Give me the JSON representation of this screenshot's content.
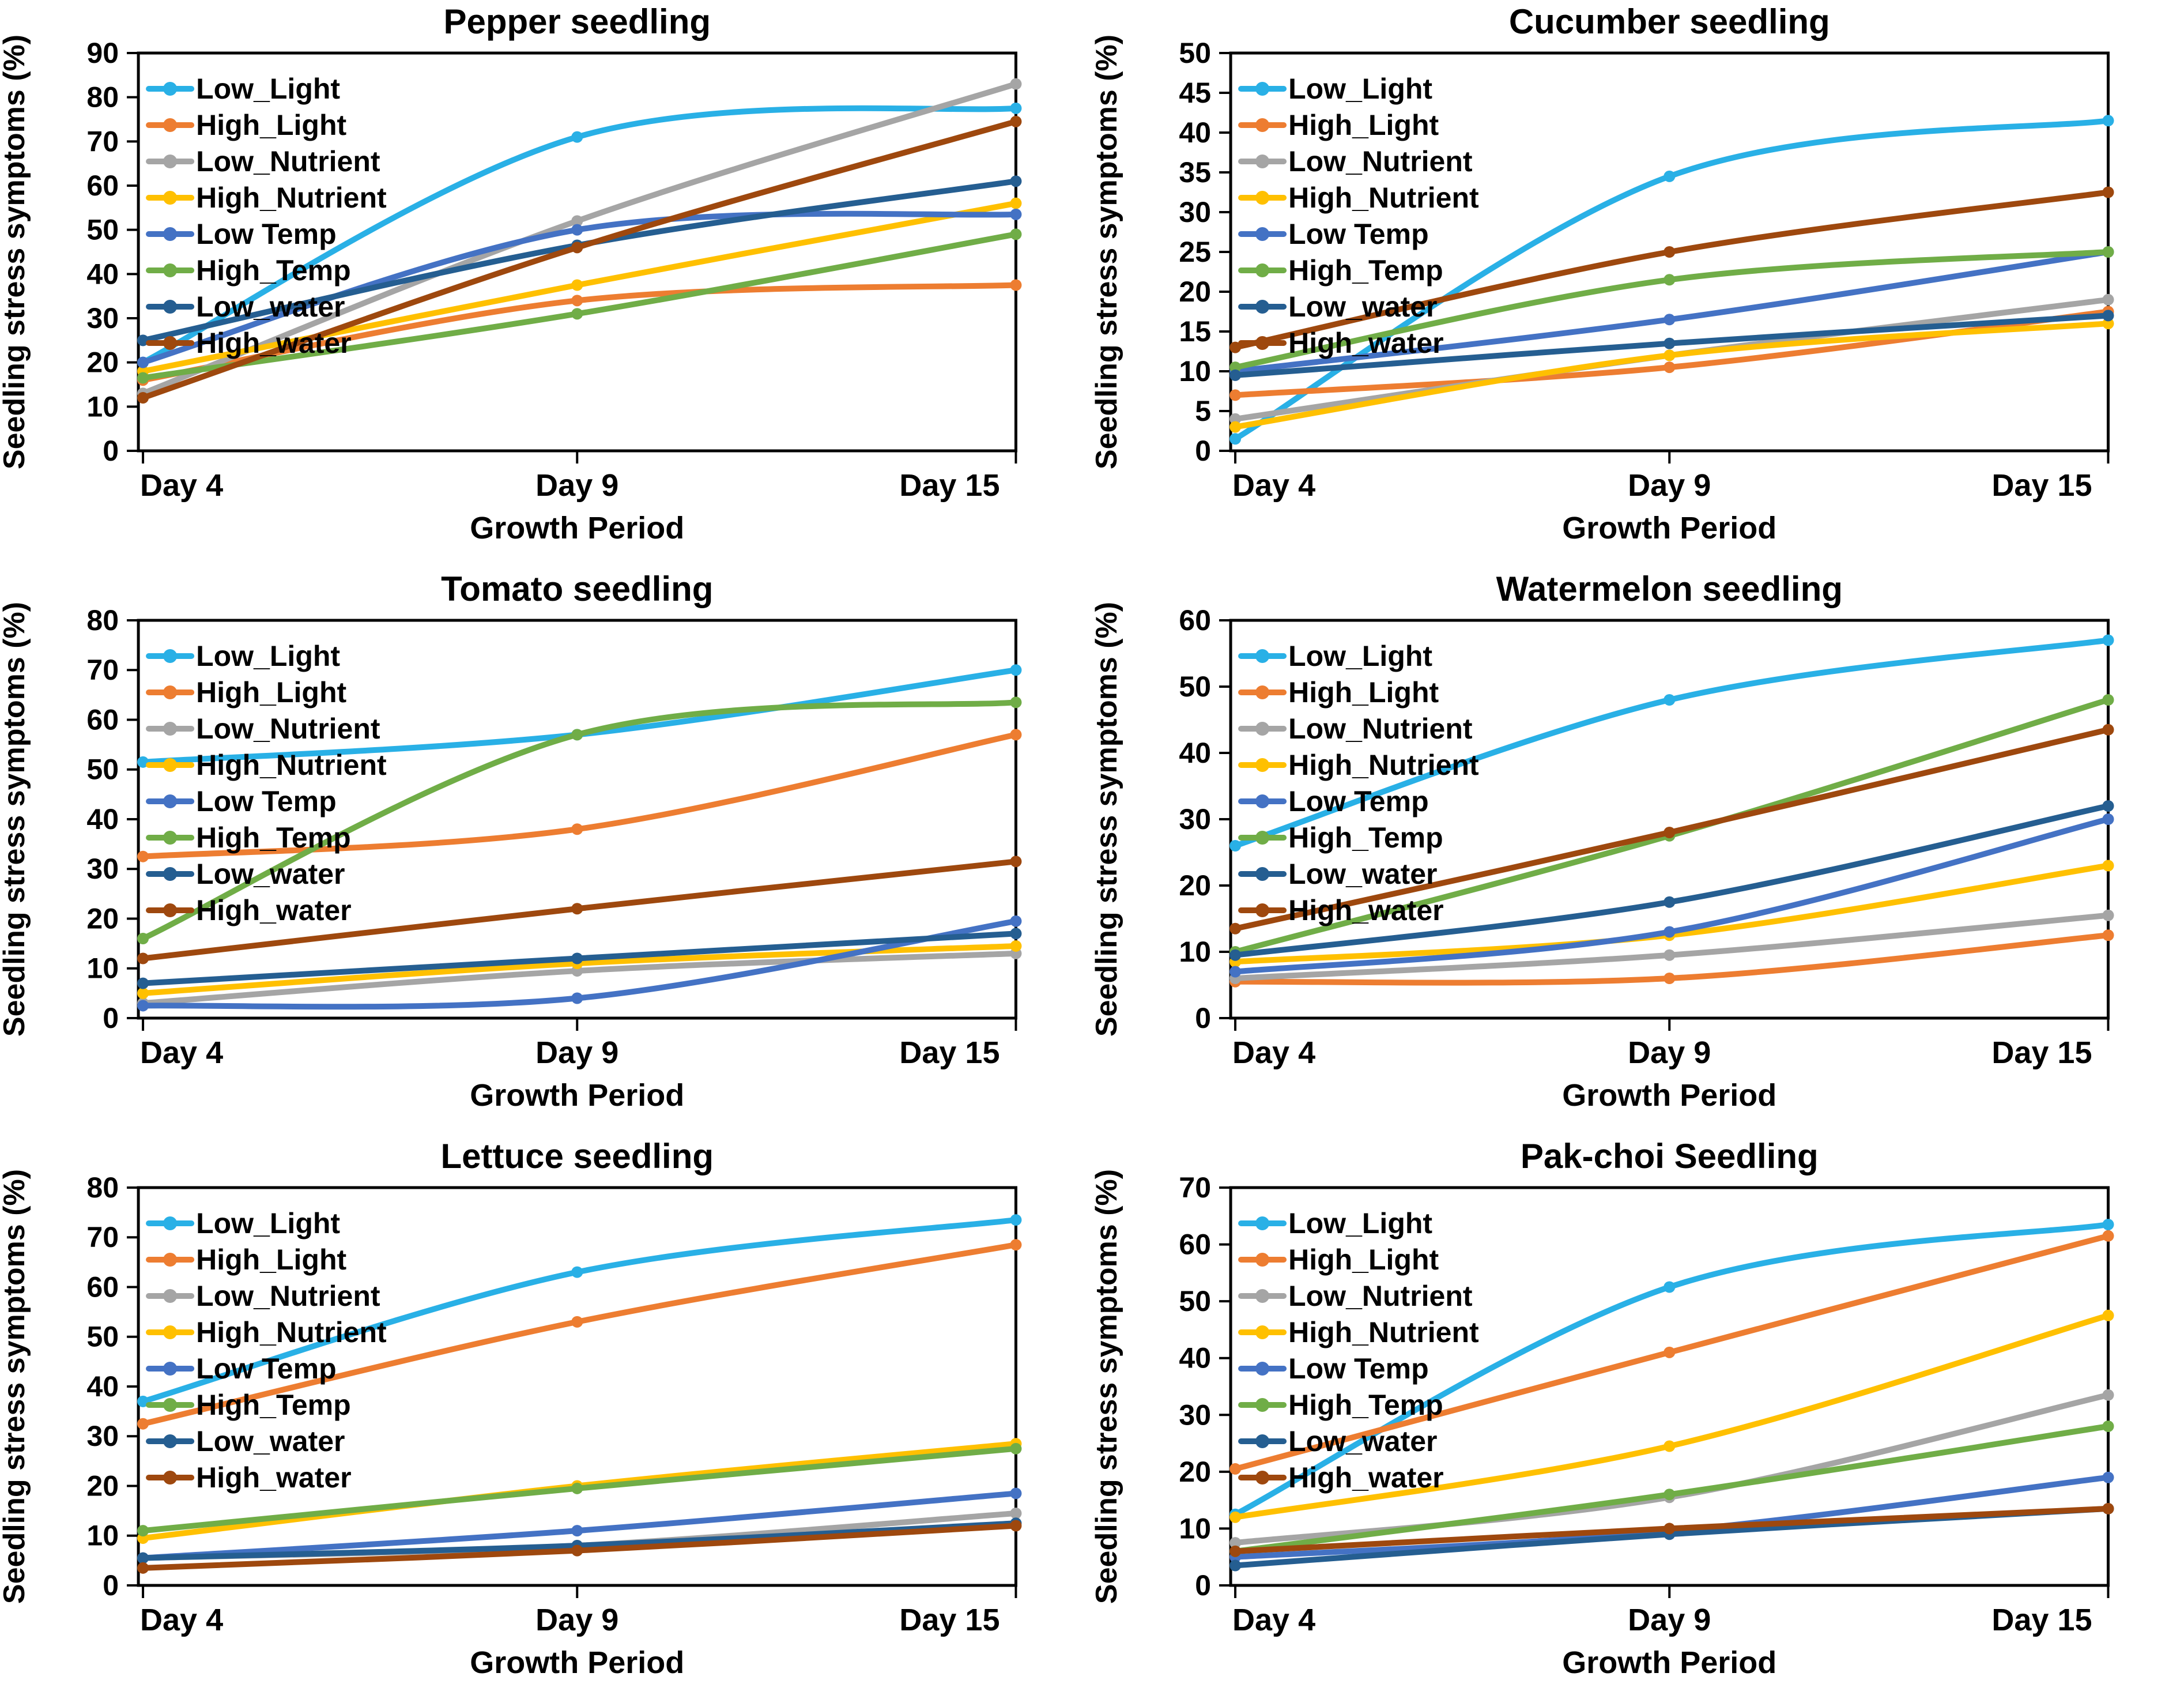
{
  "figure": {
    "background": "#ffffff",
    "text_color": "#000000",
    "x_axis_title": "Growth Period",
    "y_axis_title": "Seedling stress symptoms (%)",
    "categories": [
      "Day 4",
      "Day 9",
      "Day 15"
    ],
    "legend_position": "top-left-inside",
    "grid": "off",
    "series_colors": {
      "Low_Light": "#29B0E6",
      "High_Light": "#ED7D31",
      "Low_Nutrient": "#A5A5A5",
      "High_Nutrient": "#FFC000",
      "Low Temp": "#4472C4",
      "High_Temp": "#70AD47",
      "Low_water": "#255E91",
      "High_water": "#9E480E"
    }
  },
  "chart_data": [
    {
      "type": "line",
      "title": "Pepper seedling",
      "xlabel": "Growth Period",
      "ylabel": "Seedling stress symptoms (%)",
      "categories": [
        "Day 4",
        "Day 9",
        "Day 15"
      ],
      "ylim": [
        0,
        90
      ],
      "ytick_step": 10,
      "series": [
        {
          "name": "Low_Light",
          "color": "#29B0E6",
          "values": [
            20,
            71,
            77.5
          ]
        },
        {
          "name": "High_Light",
          "color": "#ED7D31",
          "values": [
            16,
            34,
            37.5
          ]
        },
        {
          "name": "Low_Nutrient",
          "color": "#A5A5A5",
          "values": [
            13,
            52,
            83
          ]
        },
        {
          "name": "High_Nutrient",
          "color": "#FFC000",
          "values": [
            18,
            37.5,
            56
          ]
        },
        {
          "name": "Low Temp",
          "color": "#4472C4",
          "values": [
            20,
            50,
            53.5
          ]
        },
        {
          "name": "High_Temp",
          "color": "#70AD47",
          "values": [
            16.5,
            31,
            49
          ]
        },
        {
          "name": "Low_water",
          "color": "#255E91",
          "values": [
            25,
            46.5,
            61
          ]
        },
        {
          "name": "High_water",
          "color": "#9E480E",
          "values": [
            12,
            46,
            74.5
          ]
        }
      ]
    },
    {
      "type": "line",
      "title": "Cucumber seedling",
      "xlabel": "Growth Period",
      "ylabel": "Seedling stress symptoms (%)",
      "categories": [
        "Day 4",
        "Day 9",
        "Day 15"
      ],
      "ylim": [
        0,
        50
      ],
      "ytick_step": 5,
      "series": [
        {
          "name": "Low_Light",
          "color": "#29B0E6",
          "values": [
            1.5,
            34.5,
            41.5
          ]
        },
        {
          "name": "High_Light",
          "color": "#ED7D31",
          "values": [
            7,
            10.5,
            17.5
          ]
        },
        {
          "name": "Low_Nutrient",
          "color": "#A5A5A5",
          "values": [
            4,
            12,
            19
          ]
        },
        {
          "name": "High_Nutrient",
          "color": "#FFC000",
          "values": [
            3,
            12,
            16
          ]
        },
        {
          "name": "Low Temp",
          "color": "#4472C4",
          "values": [
            10,
            16.5,
            25
          ]
        },
        {
          "name": "High_Temp",
          "color": "#70AD47",
          "values": [
            10.5,
            21.5,
            25
          ]
        },
        {
          "name": "Low_water",
          "color": "#255E91",
          "values": [
            9.5,
            13.5,
            17
          ]
        },
        {
          "name": "High_water",
          "color": "#9E480E",
          "values": [
            13,
            25,
            32.5
          ]
        }
      ]
    },
    {
      "type": "line",
      "title": "Tomato seedling",
      "xlabel": "Growth Period",
      "ylabel": "Seedling stress symptoms (%)",
      "categories": [
        "Day 4",
        "Day 9",
        "Day 15"
      ],
      "ylim": [
        0,
        80
      ],
      "ytick_step": 10,
      "series": [
        {
          "name": "Low_Light",
          "color": "#29B0E6",
          "values": [
            51.5,
            57,
            70
          ]
        },
        {
          "name": "High_Light",
          "color": "#ED7D31",
          "values": [
            32.5,
            38,
            57
          ]
        },
        {
          "name": "Low_Nutrient",
          "color": "#A5A5A5",
          "values": [
            3,
            9.5,
            13
          ]
        },
        {
          "name": "High_Nutrient",
          "color": "#FFC000",
          "values": [
            5,
            11,
            14.5
          ]
        },
        {
          "name": "Low Temp",
          "color": "#4472C4",
          "values": [
            2.5,
            4,
            19.5
          ]
        },
        {
          "name": "High_Temp",
          "color": "#70AD47",
          "values": [
            16,
            57,
            63.5
          ]
        },
        {
          "name": "Low_water",
          "color": "#255E91",
          "values": [
            7,
            12,
            17
          ]
        },
        {
          "name": "High_water",
          "color": "#9E480E",
          "values": [
            12,
            22,
            31.5
          ]
        }
      ]
    },
    {
      "type": "line",
      "title": "Watermelon seedling",
      "xlabel": "Growth Period",
      "ylabel": "Seedling stress symptoms (%)",
      "categories": [
        "Day 4",
        "Day 9",
        "Day 15"
      ],
      "ylim": [
        0,
        60
      ],
      "ytick_step": 10,
      "series": [
        {
          "name": "Low_Light",
          "color": "#29B0E6",
          "values": [
            26,
            48,
            57
          ]
        },
        {
          "name": "High_Light",
          "color": "#ED7D31",
          "values": [
            5.5,
            6,
            12.5
          ]
        },
        {
          "name": "Low_Nutrient",
          "color": "#A5A5A5",
          "values": [
            6,
            9.5,
            15.5
          ]
        },
        {
          "name": "High_Nutrient",
          "color": "#FFC000",
          "values": [
            8.5,
            12.5,
            23
          ]
        },
        {
          "name": "Low Temp",
          "color": "#4472C4",
          "values": [
            7,
            13,
            30
          ]
        },
        {
          "name": "High_Temp",
          "color": "#70AD47",
          "values": [
            10,
            27.5,
            48
          ]
        },
        {
          "name": "Low_water",
          "color": "#255E91",
          "values": [
            9.5,
            17.5,
            32
          ]
        },
        {
          "name": "High_water",
          "color": "#9E480E",
          "values": [
            13.5,
            28,
            43.5
          ]
        }
      ]
    },
    {
      "type": "line",
      "title": "Lettuce seedling",
      "xlabel": "Growth Period",
      "ylabel": "Seedling stress symptoms (%)",
      "categories": [
        "Day 4",
        "Day 9",
        "Day 15"
      ],
      "ylim": [
        0,
        80
      ],
      "ytick_step": 10,
      "series": [
        {
          "name": "Low_Light",
          "color": "#29B0E6",
          "values": [
            37,
            63,
            73.5
          ]
        },
        {
          "name": "High_Light",
          "color": "#ED7D31",
          "values": [
            32.5,
            53,
            68.5
          ]
        },
        {
          "name": "Low_Nutrient",
          "color": "#A5A5A5",
          "values": [
            5.5,
            8,
            14.5
          ]
        },
        {
          "name": "High_Nutrient",
          "color": "#FFC000",
          "values": [
            9.5,
            20,
            28.5
          ]
        },
        {
          "name": "Low Temp",
          "color": "#4472C4",
          "values": [
            5.5,
            11,
            18.5
          ]
        },
        {
          "name": "High_Temp",
          "color": "#70AD47",
          "values": [
            11,
            19.5,
            27.5
          ]
        },
        {
          "name": "Low_water",
          "color": "#255E91",
          "values": [
            5.5,
            8,
            12.5
          ]
        },
        {
          "name": "High_water",
          "color": "#9E480E",
          "values": [
            3.5,
            7,
            12
          ]
        }
      ]
    },
    {
      "type": "line",
      "title": "Pak-choi Seedling",
      "xlabel": "Growth Period",
      "ylabel": "Seedling stress symptoms (%)",
      "categories": [
        "Day 4",
        "Day 9",
        "Day 15"
      ],
      "ylim": [
        0,
        70
      ],
      "ytick_step": 10,
      "series": [
        {
          "name": "Low_Light",
          "color": "#29B0E6",
          "values": [
            12.5,
            52.5,
            63.5
          ]
        },
        {
          "name": "High_Light",
          "color": "#ED7D31",
          "values": [
            20.5,
            41,
            61.5
          ]
        },
        {
          "name": "Low_Nutrient",
          "color": "#A5A5A5",
          "values": [
            7.5,
            15.5,
            33.5
          ]
        },
        {
          "name": "High_Nutrient",
          "color": "#FFC000",
          "values": [
            12,
            24.5,
            47.5
          ]
        },
        {
          "name": "Low Temp",
          "color": "#4472C4",
          "values": [
            5,
            9.5,
            19
          ]
        },
        {
          "name": "High_Temp",
          "color": "#70AD47",
          "values": [
            6,
            16,
            28
          ]
        },
        {
          "name": "Low_water",
          "color": "#255E91",
          "values": [
            3.5,
            9,
            13.5
          ]
        },
        {
          "name": "High_water",
          "color": "#9E480E",
          "values": [
            6,
            10,
            13.5
          ]
        }
      ]
    }
  ]
}
